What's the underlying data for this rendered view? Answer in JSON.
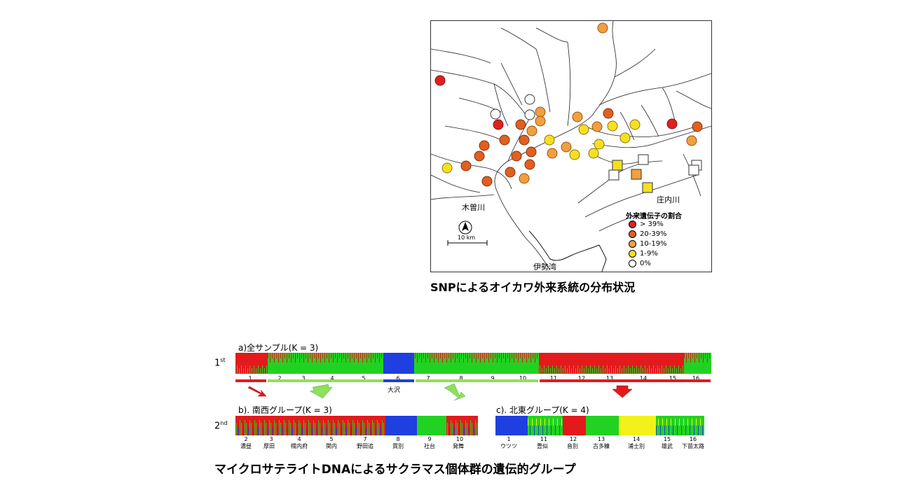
{
  "colors": {
    "red": "#e31a1c",
    "green": "#22d222",
    "blue": "#1f3fe0",
    "yellow": "#f2f21a",
    "lightgreen": "#90e05a"
  },
  "map": {
    "labels": {
      "kiso": "木曽川",
      "shonai": "庄内川",
      "ise": "伊勢湾",
      "scale": "10 km"
    },
    "legend": {
      "title": "外来遺伝子の割合",
      "items": [
        {
          "label": "> 39%",
          "color": "#e02020"
        },
        {
          "label": "20-39%",
          "color": "#e06020"
        },
        {
          "label": "10-19%",
          "color": "#f0a040"
        },
        {
          "label": "1-9%",
          "color": "#f5e020"
        },
        {
          "label": "0%",
          "color": "#ffffff"
        }
      ]
    },
    "caption": "SNPによるオイカワ外来系統の分布状況"
  },
  "structure": {
    "row1": {
      "label": "1",
      "sup": "st"
    },
    "row2": {
      "label": "2",
      "sup": "nd"
    },
    "a_title": "a)全サンプル(K = 3)",
    "b_title": "b).  南西グループ(K = 3)",
    "c_title": "c).  北東グループ(K = 4)",
    "osawa": "大沢",
    "a_numbers": [
      "1",
      "2",
      "3",
      "4",
      "5",
      "6",
      "7",
      "8",
      "9",
      "10",
      "11",
      "12",
      "13",
      "14",
      "15",
      "16"
    ],
    "b_populations": [
      {
        "num": "2",
        "name": "濃昼"
      },
      {
        "num": "3",
        "name": "厚田"
      },
      {
        "num": "4",
        "name": "幌内府"
      },
      {
        "num": "5",
        "name": "関内"
      },
      {
        "num": "7",
        "name": "野田追"
      },
      {
        "num": "8",
        "name": "貫別"
      },
      {
        "num": "9",
        "name": "社台"
      },
      {
        "num": "10",
        "name": "発舞"
      }
    ],
    "c_populations": [
      {
        "num": "1",
        "name": "ウツツ"
      },
      {
        "num": "11",
        "name": "豊似"
      },
      {
        "num": "12",
        "name": "音別"
      },
      {
        "num": "13",
        "name": "古多糠"
      },
      {
        "num": "14",
        "name": "浦士別"
      },
      {
        "num": "15",
        "name": "雄武"
      },
      {
        "num": "16",
        "name": "下苗太路"
      }
    ]
  },
  "bottom_caption": "マイクロサテライトDNAによるサクラマス個体群の遺伝的グループ"
}
